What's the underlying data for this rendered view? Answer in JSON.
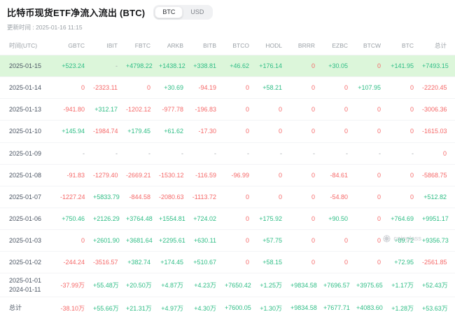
{
  "header": {
    "title": "比特币现货ETF净流入流出 (BTC)",
    "toggle": {
      "options": [
        "BTC",
        "USD"
      ],
      "selected": "BTC"
    },
    "updated": "更新时间 : 2025-01-16 11:15"
  },
  "colors": {
    "positive": "#2ebd85",
    "negative": "#f56868",
    "highlight_row": "#dcf6da"
  },
  "watermark": "coinglass",
  "chart_data": {
    "type": "table",
    "title": "比特币现货ETF净流入流出 (BTC)",
    "columns": [
      "时间(UTC)",
      "GBTC",
      "IBIT",
      "FBTC",
      "ARKB",
      "BITB",
      "BTCO",
      "HODL",
      "BRRR",
      "EZBC",
      "BTCW",
      "BTC",
      "总计"
    ],
    "rows": [
      {
        "date": [
          "2025-01-15"
        ],
        "highlight": true,
        "values": [
          "+523.24",
          "-",
          "+4798.22",
          "+1438.12",
          "+338.81",
          "+46.62",
          "+176.14",
          "0",
          "+30.05",
          "0",
          "+141.95",
          "+7493.15"
        ]
      },
      {
        "date": [
          "2025-01-14"
        ],
        "values": [
          "0",
          "-2323.11",
          "0",
          "+30.69",
          "-94.19",
          "0",
          "+58.21",
          "0",
          "0",
          "+107.95",
          "0",
          "-2220.45"
        ]
      },
      {
        "date": [
          "2025-01-13"
        ],
        "values": [
          "-941.80",
          "+312.17",
          "-1202.12",
          "-977.78",
          "-196.83",
          "0",
          "0",
          "0",
          "0",
          "0",
          "0",
          "-3006.36"
        ]
      },
      {
        "date": [
          "2025-01-10"
        ],
        "values": [
          "+145.94",
          "-1984.74",
          "+179.45",
          "+61.62",
          "-17.30",
          "0",
          "0",
          "0",
          "0",
          "0",
          "0",
          "-1615.03"
        ]
      },
      {
        "date": [
          "2025-01-09"
        ],
        "values": [
          "-",
          "-",
          "-",
          "-",
          "-",
          "-",
          "-",
          "-",
          "-",
          "-",
          "-",
          "0"
        ]
      },
      {
        "date": [
          "2025-01-08"
        ],
        "values": [
          "-91.83",
          "-1279.40",
          "-2669.21",
          "-1530.12",
          "-116.59",
          "-96.99",
          "0",
          "0",
          "-84.61",
          "0",
          "0",
          "-5868.75"
        ]
      },
      {
        "date": [
          "2025-01-07"
        ],
        "values": [
          "-1227.24",
          "+5833.79",
          "-844.58",
          "-2080.63",
          "-1113.72",
          "0",
          "0",
          "0",
          "-54.80",
          "0",
          "0",
          "+512.82"
        ]
      },
      {
        "date": [
          "2025-01-06"
        ],
        "values": [
          "+750.46",
          "+2126.29",
          "+3764.48",
          "+1554.81",
          "+724.02",
          "0",
          "+175.92",
          "0",
          "+90.50",
          "0",
          "+764.69",
          "+9951.17"
        ]
      },
      {
        "date": [
          "2025-01-03"
        ],
        "values": [
          "0",
          "+2601.90",
          "+3681.64",
          "+2295.61",
          "+630.11",
          "0",
          "+57.75",
          "0",
          "0",
          "0",
          "+89.72",
          "+9356.73"
        ]
      },
      {
        "date": [
          "2025-01-02"
        ],
        "values": [
          "-244.24",
          "-3516.57",
          "+382.74",
          "+174.45",
          "+510.67",
          "0",
          "+58.15",
          "0",
          "0",
          "0",
          "+72.95",
          "-2561.85"
        ]
      },
      {
        "date": [
          "2025-01-01",
          "2024-01-11"
        ],
        "range": true,
        "values": [
          "-37.99万",
          "+55.48万",
          "+20.50万",
          "+4.87万",
          "+4.23万",
          "+7650.42",
          "+1.25万",
          "+9834.58",
          "+7696.57",
          "+3975.65",
          "+1.17万",
          "+52.43万"
        ]
      },
      {
        "date": [
          "总计"
        ],
        "total": true,
        "values": [
          "-38.10万",
          "+55.66万",
          "+21.31万",
          "+4.97万",
          "+4.30万",
          "+7600.05",
          "+1.30万",
          "+9834.58",
          "+7677.71",
          "+4083.60",
          "+1.28万",
          "+53.63万"
        ]
      }
    ]
  }
}
